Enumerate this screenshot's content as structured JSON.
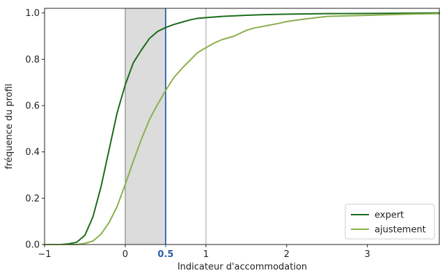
{
  "chart_data": {
    "type": "line",
    "xlabel": "Indicateur d'accommodation",
    "ylabel": "fréquence du profil",
    "xlim": [
      -1,
      3.9
    ],
    "ylim": [
      0,
      1.02
    ],
    "xticks": [
      {
        "value": -1,
        "label": "−1"
      },
      {
        "value": 0,
        "label": "0"
      },
      {
        "value": 0.5,
        "label": "0.5"
      },
      {
        "value": 1,
        "label": "1"
      },
      {
        "value": 2,
        "label": "2"
      },
      {
        "value": 3,
        "label": "3"
      }
    ],
    "yticks": [
      {
        "value": 0,
        "label": "0.0"
      },
      {
        "value": 0.2,
        "label": "0.2"
      },
      {
        "value": 0.4,
        "label": "0.4"
      },
      {
        "value": 0.6,
        "label": "0.6"
      },
      {
        "value": 0.8,
        "label": "0.8"
      },
      {
        "value": 1.0,
        "label": "1.0"
      }
    ],
    "shaded_region": {
      "x0": 0,
      "x1": 0.5,
      "color": "#dcdcdc"
    },
    "vlines": [
      {
        "x": 0,
        "color": "#999999"
      },
      {
        "x": 0.5,
        "color": "#2a5fa8"
      },
      {
        "x": 1,
        "color": "#bbbbbb"
      }
    ],
    "highlight_tick_color": "#2a5fa8",
    "legend_position": "lower right",
    "series": [
      {
        "name": "expert",
        "color": "#1a6b1a",
        "x": [
          -1.0,
          -0.8,
          -0.7,
          -0.6,
          -0.5,
          -0.4,
          -0.3,
          -0.2,
          -0.1,
          0.0,
          0.1,
          0.2,
          0.3,
          0.4,
          0.5,
          0.6,
          0.7,
          0.8,
          0.9,
          1.0,
          1.2,
          1.5,
          1.75,
          2.0,
          2.5,
          3.0,
          3.5,
          3.9
        ],
        "y": [
          0.0,
          0.0,
          0.003,
          0.01,
          0.04,
          0.12,
          0.25,
          0.41,
          0.57,
          0.69,
          0.785,
          0.84,
          0.89,
          0.92,
          0.937,
          0.95,
          0.96,
          0.97,
          0.977,
          0.98,
          0.985,
          0.99,
          0.993,
          0.995,
          0.997,
          0.998,
          0.999,
          1.0
        ]
      },
      {
        "name": "ajustement",
        "color": "#8ab04a",
        "x": [
          -1.0,
          -0.6,
          -0.5,
          -0.4,
          -0.3,
          -0.2,
          -0.1,
          0.0,
          0.1,
          0.2,
          0.3,
          0.4,
          0.5,
          0.6,
          0.7,
          0.8,
          0.9,
          1.0,
          1.1,
          1.2,
          1.35,
          1.5,
          1.6,
          1.75,
          1.9,
          2.0,
          2.25,
          2.5,
          3.0,
          3.5,
          3.9
        ],
        "y": [
          0.0,
          0.0,
          0.005,
          0.015,
          0.045,
          0.095,
          0.165,
          0.26,
          0.36,
          0.455,
          0.54,
          0.605,
          0.665,
          0.72,
          0.76,
          0.795,
          0.83,
          0.85,
          0.87,
          0.885,
          0.9,
          0.925,
          0.935,
          0.945,
          0.955,
          0.963,
          0.975,
          0.985,
          0.99,
          0.995,
          0.997
        ]
      }
    ]
  }
}
